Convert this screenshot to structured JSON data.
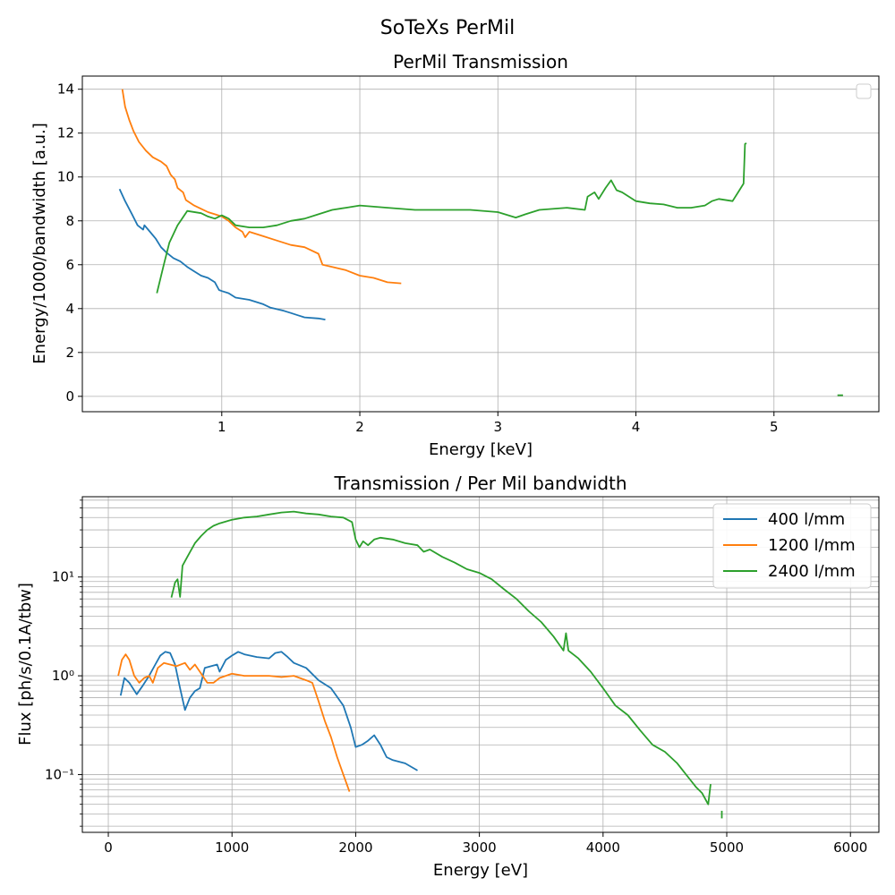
{
  "figure": {
    "suptitle": "SoTeXs PerMil"
  },
  "chart_data": [
    {
      "type": "line",
      "title": "PerMil Transmission",
      "xlabel": "Energy [keV]",
      "ylabel": "Energy/1000/bandwidth [a.u.]",
      "xlim": [
        -0.01,
        5.76
      ],
      "ylim": [
        -0.7,
        14.6
      ],
      "yscale": "linear",
      "xticks": [
        1,
        2,
        3,
        4,
        5
      ],
      "xtick_labels": [
        "1",
        "2",
        "3",
        "4",
        "5"
      ],
      "yticks": [
        0,
        2,
        4,
        6,
        8,
        10,
        12,
        14
      ],
      "ytick_labels": [
        "0",
        "2",
        "4",
        "6",
        "8",
        "10",
        "12",
        "14"
      ],
      "grid": true,
      "legend": {
        "placement": "top-right",
        "entries": []
      },
      "series": [
        {
          "color": "#1f77b4",
          "points": [
            [
              0.26,
              9.45
            ],
            [
              0.3,
              8.9
            ],
            [
              0.35,
              8.3
            ],
            [
              0.39,
              7.8
            ],
            [
              0.43,
              7.6
            ],
            [
              0.44,
              7.8
            ],
            [
              0.48,
              7.5
            ],
            [
              0.52,
              7.2
            ],
            [
              0.56,
              6.8
            ],
            [
              0.6,
              6.55
            ],
            [
              0.65,
              6.3
            ],
            [
              0.7,
              6.15
            ],
            [
              0.75,
              5.9
            ],
            [
              0.8,
              5.7
            ],
            [
              0.85,
              5.5
            ],
            [
              0.9,
              5.4
            ],
            [
              0.95,
              5.2
            ],
            [
              0.98,
              4.85
            ],
            [
              1.0,
              4.8
            ],
            [
              1.05,
              4.7
            ],
            [
              1.1,
              4.5
            ],
            [
              1.2,
              4.4
            ],
            [
              1.3,
              4.2
            ],
            [
              1.35,
              4.05
            ],
            [
              1.45,
              3.9
            ],
            [
              1.5,
              3.8
            ],
            [
              1.55,
              3.7
            ],
            [
              1.6,
              3.6
            ],
            [
              1.7,
              3.55
            ],
            [
              1.75,
              3.5
            ]
          ]
        },
        {
          "color": "#ff7f0e",
          "points": [
            [
              0.28,
              14.0
            ],
            [
              0.3,
              13.2
            ],
            [
              0.33,
              12.6
            ],
            [
              0.36,
              12.1
            ],
            [
              0.4,
              11.6
            ],
            [
              0.45,
              11.2
            ],
            [
              0.5,
              10.9
            ],
            [
              0.56,
              10.7
            ],
            [
              0.6,
              10.5
            ],
            [
              0.63,
              10.1
            ],
            [
              0.66,
              9.9
            ],
            [
              0.68,
              9.5
            ],
            [
              0.72,
              9.3
            ],
            [
              0.74,
              8.95
            ],
            [
              0.8,
              8.7
            ],
            [
              0.85,
              8.55
            ],
            [
              0.9,
              8.4
            ],
            [
              0.95,
              8.3
            ],
            [
              1.0,
              8.2
            ],
            [
              1.05,
              8.0
            ],
            [
              1.1,
              7.7
            ],
            [
              1.15,
              7.5
            ],
            [
              1.17,
              7.25
            ],
            [
              1.2,
              7.5
            ],
            [
              1.3,
              7.3
            ],
            [
              1.4,
              7.1
            ],
            [
              1.5,
              6.9
            ],
            [
              1.6,
              6.8
            ],
            [
              1.7,
              6.5
            ],
            [
              1.73,
              6.0
            ],
            [
              1.8,
              5.9
            ],
            [
              1.9,
              5.75
            ],
            [
              2.0,
              5.5
            ],
            [
              2.1,
              5.4
            ],
            [
              2.2,
              5.2
            ],
            [
              2.3,
              5.15
            ]
          ]
        },
        {
          "color": "#2ca02c",
          "points": [
            [
              0.53,
              4.7
            ],
            [
              0.58,
              6.0
            ],
            [
              0.62,
              7.0
            ],
            [
              0.68,
              7.8
            ],
            [
              0.75,
              8.45
            ],
            [
              0.85,
              8.35
            ],
            [
              0.9,
              8.2
            ],
            [
              0.95,
              8.1
            ],
            [
              1.0,
              8.25
            ],
            [
              1.05,
              8.1
            ],
            [
              1.1,
              7.8
            ],
            [
              1.2,
              7.7
            ],
            [
              1.3,
              7.7
            ],
            [
              1.4,
              7.8
            ],
            [
              1.5,
              8.0
            ],
            [
              1.6,
              8.1
            ],
            [
              1.7,
              8.3
            ],
            [
              1.8,
              8.5
            ],
            [
              1.9,
              8.6
            ],
            [
              2.0,
              8.7
            ],
            [
              2.2,
              8.6
            ],
            [
              2.4,
              8.5
            ],
            [
              2.6,
              8.5
            ],
            [
              2.8,
              8.5
            ],
            [
              3.0,
              8.4
            ],
            [
              3.13,
              8.15
            ],
            [
              3.2,
              8.3
            ],
            [
              3.3,
              8.5
            ],
            [
              3.5,
              8.6
            ],
            [
              3.63,
              8.5
            ],
            [
              3.65,
              9.1
            ],
            [
              3.7,
              9.3
            ],
            [
              3.73,
              9.0
            ],
            [
              3.78,
              9.5
            ],
            [
              3.82,
              9.85
            ],
            [
              3.86,
              9.4
            ],
            [
              3.9,
              9.3
            ],
            [
              4.0,
              8.9
            ],
            [
              4.1,
              8.8
            ],
            [
              4.2,
              8.75
            ],
            [
              4.3,
              8.6
            ],
            [
              4.4,
              8.6
            ],
            [
              4.5,
              8.7
            ],
            [
              4.55,
              8.9
            ],
            [
              4.6,
              9.0
            ],
            [
              4.7,
              8.9
            ],
            [
              4.75,
              9.4
            ],
            [
              4.78,
              9.7
            ],
            [
              4.79,
              11.5
            ],
            [
              4.8,
              11.55
            ]
          ]
        },
        {
          "color": "#2ca02c",
          "points": [
            [
              5.46,
              0.05
            ],
            [
              5.5,
              0.05
            ]
          ]
        }
      ]
    },
    {
      "type": "line",
      "title": "Transmission / Per Mil bandwidth",
      "xlabel": "Energy [eV]",
      "ylabel": "Flux [ph/s/0.1A/tbw]",
      "xlim": [
        -210,
        6230
      ],
      "ylim": [
        0.026,
        65
      ],
      "yscale": "log",
      "xticks": [
        0,
        1000,
        2000,
        3000,
        4000,
        5000,
        6000
      ],
      "xtick_labels": [
        "0",
        "1000",
        "2000",
        "3000",
        "4000",
        "5000",
        "6000"
      ],
      "yticks": [
        0.1,
        1,
        10
      ],
      "ytick_labels": [
        "10⁻¹",
        "10⁰",
        "10¹"
      ],
      "grid": true,
      "legend": {
        "placement": "top-right"
      },
      "series": [
        {
          "name": "400 l/mm",
          "color": "#1f77b4",
          "points": [
            [
              100,
              0.63
            ],
            [
              130,
              0.95
            ],
            [
              170,
              0.85
            ],
            [
              230,
              0.65
            ],
            [
              280,
              0.8
            ],
            [
              330,
              1.0
            ],
            [
              380,
              1.3
            ],
            [
              420,
              1.6
            ],
            [
              460,
              1.75
            ],
            [
              500,
              1.7
            ],
            [
              540,
              1.3
            ],
            [
              580,
              0.75
            ],
            [
              620,
              0.45
            ],
            [
              660,
              0.6
            ],
            [
              700,
              0.7
            ],
            [
              740,
              0.75
            ],
            [
              780,
              1.2
            ],
            [
              830,
              1.25
            ],
            [
              880,
              1.3
            ],
            [
              900,
              1.1
            ],
            [
              950,
              1.45
            ],
            [
              1000,
              1.6
            ],
            [
              1050,
              1.75
            ],
            [
              1100,
              1.65
            ],
            [
              1200,
              1.55
            ],
            [
              1300,
              1.5
            ],
            [
              1350,
              1.7
            ],
            [
              1400,
              1.75
            ],
            [
              1450,
              1.55
            ],
            [
              1500,
              1.35
            ],
            [
              1600,
              1.2
            ],
            [
              1700,
              0.9
            ],
            [
              1800,
              0.75
            ],
            [
              1900,
              0.5
            ],
            [
              1960,
              0.3
            ],
            [
              2000,
              0.19
            ],
            [
              2050,
              0.2
            ],
            [
              2100,
              0.22
            ],
            [
              2150,
              0.25
            ],
            [
              2200,
              0.2
            ],
            [
              2250,
              0.15
            ],
            [
              2300,
              0.14
            ],
            [
              2400,
              0.13
            ],
            [
              2500,
              0.11
            ]
          ]
        },
        {
          "name": "1200 l/mm",
          "color": "#ff7f0e",
          "points": [
            [
              80,
              1.0
            ],
            [
              110,
              1.45
            ],
            [
              140,
              1.65
            ],
            [
              170,
              1.45
            ],
            [
              210,
              1.0
            ],
            [
              250,
              0.85
            ],
            [
              290,
              0.95
            ],
            [
              330,
              1.0
            ],
            [
              360,
              0.85
            ],
            [
              400,
              1.2
            ],
            [
              450,
              1.35
            ],
            [
              500,
              1.3
            ],
            [
              550,
              1.25
            ],
            [
              620,
              1.35
            ],
            [
              660,
              1.15
            ],
            [
              700,
              1.3
            ],
            [
              740,
              1.1
            ],
            [
              800,
              0.85
            ],
            [
              850,
              0.85
            ],
            [
              900,
              0.95
            ],
            [
              1000,
              1.05
            ],
            [
              1100,
              1.0
            ],
            [
              1200,
              1.0
            ],
            [
              1300,
              1.0
            ],
            [
              1400,
              0.97
            ],
            [
              1500,
              1.0
            ],
            [
              1600,
              0.9
            ],
            [
              1650,
              0.85
            ],
            [
              1700,
              0.55
            ],
            [
              1750,
              0.35
            ],
            [
              1800,
              0.24
            ],
            [
              1850,
              0.15
            ],
            [
              1900,
              0.1
            ],
            [
              1950,
              0.067
            ]
          ]
        },
        {
          "name": "2400 l/mm",
          "color": "#2ca02c",
          "points": [
            [
              510,
              6.2
            ],
            [
              540,
              8.8
            ],
            [
              560,
              9.5
            ],
            [
              580,
              6.3
            ],
            [
              600,
              13
            ],
            [
              650,
              17
            ],
            [
              700,
              22
            ],
            [
              750,
              26
            ],
            [
              800,
              30
            ],
            [
              850,
              33
            ],
            [
              900,
              35
            ],
            [
              1000,
              38
            ],
            [
              1100,
              40
            ],
            [
              1200,
              41
            ],
            [
              1300,
              43
            ],
            [
              1400,
              45
            ],
            [
              1500,
              46
            ],
            [
              1600,
              44
            ],
            [
              1700,
              43
            ],
            [
              1800,
              41
            ],
            [
              1900,
              40
            ],
            [
              1970,
              36
            ],
            [
              2000,
              24
            ],
            [
              2030,
              20
            ],
            [
              2060,
              23
            ],
            [
              2100,
              21
            ],
            [
              2150,
              24
            ],
            [
              2200,
              25
            ],
            [
              2300,
              24
            ],
            [
              2400,
              22
            ],
            [
              2500,
              21
            ],
            [
              2550,
              18
            ],
            [
              2600,
              19
            ],
            [
              2700,
              16
            ],
            [
              2800,
              14
            ],
            [
              2900,
              12
            ],
            [
              3000,
              11
            ],
            [
              3100,
              9.5
            ],
            [
              3200,
              7.5
            ],
            [
              3300,
              6.0
            ],
            [
              3400,
              4.5
            ],
            [
              3500,
              3.5
            ],
            [
              3600,
              2.5
            ],
            [
              3680,
              1.8
            ],
            [
              3700,
              2.7
            ],
            [
              3720,
              1.8
            ],
            [
              3800,
              1.5
            ],
            [
              3900,
              1.1
            ],
            [
              4000,
              0.75
            ],
            [
              4100,
              0.5
            ],
            [
              4200,
              0.4
            ],
            [
              4300,
              0.28
            ],
            [
              4400,
              0.2
            ],
            [
              4500,
              0.17
            ],
            [
              4600,
              0.13
            ],
            [
              4700,
              0.09
            ],
            [
              4750,
              0.075
            ],
            [
              4800,
              0.065
            ],
            [
              4850,
              0.05
            ],
            [
              4870,
              0.08
            ]
          ]
        },
        {
          "name": "",
          "color": "#2ca02c",
          "points": [
            [
              4960,
              0.043
            ],
            [
              4960,
              0.036
            ]
          ]
        }
      ]
    }
  ]
}
